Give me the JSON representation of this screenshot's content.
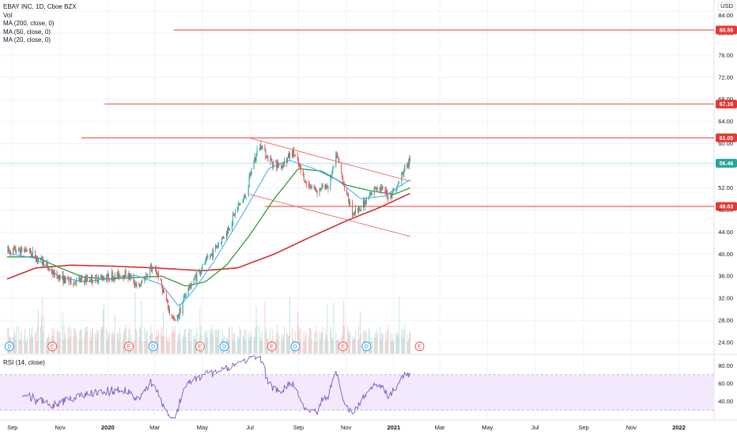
{
  "header": {
    "symbol": "EBAY INC, 1D, Cboe BZX",
    "indicators": [
      "Vol",
      "MA (200, close, 0)",
      "MA (50, close, 0)",
      "MA (20, close, 0)"
    ],
    "currency": "USD"
  },
  "rsi": {
    "title": "RSI (14, close)",
    "ticks": [
      "80.00",
      "60.00",
      "40.00"
    ]
  },
  "colors": {
    "up": "#26a69a",
    "down": "#ef5350",
    "ma200": "#d32f2f",
    "ma50": "#2e9c3c",
    "ma20": "#42a5f5",
    "trend": "#ef5350",
    "level": "#e53935",
    "rsi": "#7e57c2",
    "rsi_band": "#f3e9fd",
    "price_tag": "#26a69a",
    "dividend": "#2196f3",
    "earnings": "#ef5350"
  },
  "chart_data": {
    "type": "candlestick",
    "title": "EBAY INC, 1D, Cboe BZX",
    "ylabel": "USD",
    "ylim": [
      22,
      86
    ],
    "y_ticks": [
      "84.00",
      "80.00",
      "76.00",
      "72.00",
      "68.00",
      "64.00",
      "60.00",
      "56.00",
      "52.00",
      "48.00",
      "44.00",
      "40.00",
      "36.00",
      "32.00",
      "28.00",
      "24.00"
    ],
    "x_ticks": [
      "Sep",
      "Nov",
      "2020",
      "Mar",
      "May",
      "Jul",
      "Sep",
      "Nov",
      "2021",
      "Mar",
      "May",
      "Jul",
      "Sep",
      "Nov",
      "2022"
    ],
    "last_price": "56.46",
    "levels": [
      "80.56",
      "67.16",
      "61.05",
      "48.63"
    ],
    "price_path": [
      [
        "2019-08-25",
        40.5
      ],
      [
        "2019-09-20",
        40.8
      ],
      [
        "2019-10-10",
        38.5
      ],
      [
        "2019-10-25",
        36.2
      ],
      [
        "2019-11-15",
        35.0
      ],
      [
        "2019-12-10",
        35.5
      ],
      [
        "2020-01-05",
        36.0
      ],
      [
        "2020-01-25",
        36.5
      ],
      [
        "2020-02-10",
        34.0
      ],
      [
        "2020-02-25",
        37.5
      ],
      [
        "2020-03-05",
        36.5
      ],
      [
        "2020-03-20",
        29.5
      ],
      [
        "2020-03-28",
        27.5
      ],
      [
        "2020-04-10",
        33.0
      ],
      [
        "2020-04-25",
        36.5
      ],
      [
        "2020-05-15",
        40.5
      ],
      [
        "2020-06-01",
        44.0
      ],
      [
        "2020-06-15",
        48.5
      ],
      [
        "2020-06-25",
        50.5
      ],
      [
        "2020-07-05",
        56.5
      ],
      [
        "2020-07-15",
        60.0
      ],
      [
        "2020-07-25",
        57.0
      ],
      [
        "2020-08-10",
        56.0
      ],
      [
        "2020-08-25",
        58.5
      ],
      [
        "2020-09-10",
        53.0
      ],
      [
        "2020-09-25",
        51.5
      ],
      [
        "2020-10-10",
        52.5
      ],
      [
        "2020-10-20",
        58.0
      ],
      [
        "2020-11-01",
        51.0
      ],
      [
        "2020-11-10",
        47.5
      ],
      [
        "2020-11-25",
        49.0
      ],
      [
        "2020-12-10",
        52.5
      ],
      [
        "2020-12-25",
        50.5
      ],
      [
        "2021-01-05",
        52.0
      ],
      [
        "2021-01-15",
        55.5
      ],
      [
        "2021-01-22",
        56.8
      ]
    ],
    "ma20_path": [
      [
        "2019-08-25",
        40.2
      ],
      [
        "2019-10-01",
        39.2
      ],
      [
        "2019-11-01",
        35.8
      ],
      [
        "2019-12-01",
        35.0
      ],
      [
        "2020-01-05",
        35.6
      ],
      [
        "2020-02-05",
        36.2
      ],
      [
        "2020-03-10",
        34.5
      ],
      [
        "2020-04-01",
        30.5
      ],
      [
        "2020-04-20",
        33.5
      ],
      [
        "2020-05-15",
        38.5
      ],
      [
        "2020-06-10",
        44.5
      ],
      [
        "2020-07-01",
        49.5
      ],
      [
        "2020-07-25",
        55.5
      ],
      [
        "2020-08-20",
        57.0
      ],
      [
        "2020-09-20",
        55.5
      ],
      [
        "2020-10-20",
        53.5
      ],
      [
        "2020-11-20",
        50.0
      ],
      [
        "2020-12-20",
        50.5
      ],
      [
        "2021-01-22",
        53.5
      ]
    ],
    "ma50_path": [
      [
        "2019-08-25",
        39.5
      ],
      [
        "2019-10-01",
        39.5
      ],
      [
        "2019-11-01",
        37.5
      ],
      [
        "2019-12-01",
        35.8
      ],
      [
        "2020-01-05",
        35.5
      ],
      [
        "2020-02-10",
        35.8
      ],
      [
        "2020-03-10",
        36.0
      ],
      [
        "2020-04-10",
        34.2
      ],
      [
        "2020-05-05",
        35.0
      ],
      [
        "2020-06-01",
        38.0
      ],
      [
        "2020-07-01",
        43.5
      ],
      [
        "2020-08-01",
        50.0
      ],
      [
        "2020-09-01",
        55.5
      ],
      [
        "2020-10-01",
        55.0
      ],
      [
        "2020-11-01",
        52.5
      ],
      [
        "2020-12-01",
        51.5
      ],
      [
        "2021-01-01",
        50.8
      ],
      [
        "2021-01-22",
        52.0
      ]
    ],
    "ma200_path": [
      [
        "2019-08-25",
        35.5
      ],
      [
        "2019-10-01",
        37.5
      ],
      [
        "2019-11-15",
        38.0
      ],
      [
        "2020-01-10",
        37.8
      ],
      [
        "2020-03-01",
        37.5
      ],
      [
        "2020-05-01",
        37.0
      ],
      [
        "2020-06-15",
        37.5
      ],
      [
        "2020-08-01",
        40.0
      ],
      [
        "2020-09-15",
        43.0
      ],
      [
        "2020-11-01",
        46.0
      ],
      [
        "2020-12-15",
        48.5
      ],
      [
        "2021-01-22",
        51.0
      ]
    ],
    "trendlines": [
      [
        [
          "2020-07-01",
          61.0
        ],
        [
          "2021-01-22",
          53.2
        ]
      ],
      [
        [
          "2020-07-01",
          50.8
        ],
        [
          "2021-01-22",
          43.2
        ]
      ]
    ],
    "events": [
      [
        "2019-08-28",
        "D"
      ],
      [
        "2019-10-22",
        "E"
      ],
      [
        "2020-01-28",
        "E"
      ],
      [
        "2020-02-28",
        "D"
      ],
      [
        "2020-04-28",
        "E"
      ],
      [
        "2020-05-29",
        "D"
      ],
      [
        "2020-07-29",
        "E"
      ],
      [
        "2020-08-28",
        "D"
      ],
      [
        "2020-10-28",
        "E"
      ],
      [
        "2020-11-27",
        "D"
      ],
      [
        "2021-02-03",
        "E"
      ]
    ],
    "rsi_ylim": [
      20,
      92
    ],
    "rsi_ticks": [
      80,
      60,
      40
    ]
  }
}
